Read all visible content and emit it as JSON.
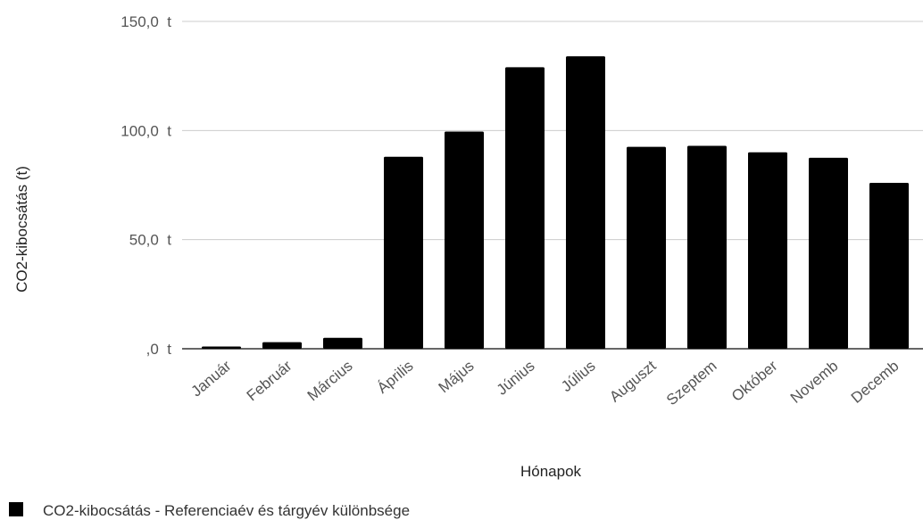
{
  "chart_data": {
    "type": "bar",
    "title": "",
    "xlabel": "Hónapok",
    "ylabel": "CO2-kibocsátás (t)",
    "categories": [
      "Január",
      "Február",
      "Március",
      "Április",
      "Május",
      "Június",
      "Július",
      "Auguszt",
      "Szeptem",
      "Október",
      "Novemb",
      "Decemb"
    ],
    "series": [
      {
        "name": "CO2-kibocsátás - Referenciaév és tárgyév különbsége",
        "color": "#000000",
        "values": [
          1,
          3,
          5,
          88,
          99.5,
          129,
          134,
          92.5,
          93,
          90,
          87.5,
          76
        ]
      }
    ],
    "ylim": [
      0,
      150
    ],
    "yticks": [
      0,
      50,
      100,
      150
    ],
    "ytick_labels": [
      ",0  t",
      "50,0  t",
      "100,0  t",
      "150,0  t"
    ],
    "grid": true,
    "legend_position": "bottom-left",
    "gridline_color": "#cccccc"
  }
}
